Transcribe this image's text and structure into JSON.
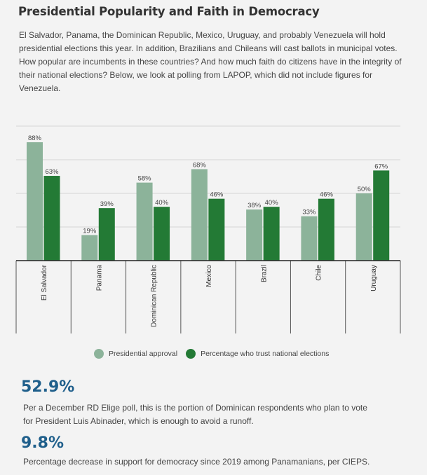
{
  "title": "Presidential Popularity and Faith in Democracy",
  "intro": "El Salvador, Panama, the  Dominican Republic, Mexico, Uruguay, and probably Venezuela will hold presidential elections this year. In addition, Brazilians and Chileans will cast ballots in municipal votes. How popular are incumbents in these countries? And how much faith do citizens have in the integrity of their national elections? Below, we look at polling from LAPOP, which did not include figures for Venezuela.",
  "colors": {
    "approval": "#8cb39a",
    "trust": "#237a35",
    "stat": "#1f5f8b"
  },
  "chart_data": {
    "type": "bar",
    "categories": [
      "El Salvador",
      "Panama",
      "Dominican Republic",
      "Mexico",
      "Brazil",
      "Chile",
      "Uruguay"
    ],
    "series": [
      {
        "name": "Presidential approval",
        "values": [
          88,
          19,
          58,
          68,
          38,
          33,
          50
        ],
        "labels": [
          "88%",
          "19%",
          "58%",
          "68%",
          "38%",
          "33%",
          "50%"
        ]
      },
      {
        "name": "Percentage who trust national elections",
        "values": [
          63,
          39,
          40,
          46,
          40,
          46,
          67
        ],
        "labels": [
          "63%",
          "39%",
          "40%",
          "46%",
          "40%",
          "46%",
          "67%"
        ]
      }
    ],
    "ylim": [
      0,
      100
    ],
    "grid": true,
    "legend_position": "bottom"
  },
  "stats": [
    {
      "value": "52.9%",
      "text": "Per a December RD Elige poll, this is the portion of Dominican respondents who plan to vote for President Luis Abinader, which is enough to avoid a runoff."
    },
    {
      "value": "9.8%",
      "text": "Percentage decrease in support for democracy since 2019 among Panamanians, per  CIEPS."
    }
  ]
}
